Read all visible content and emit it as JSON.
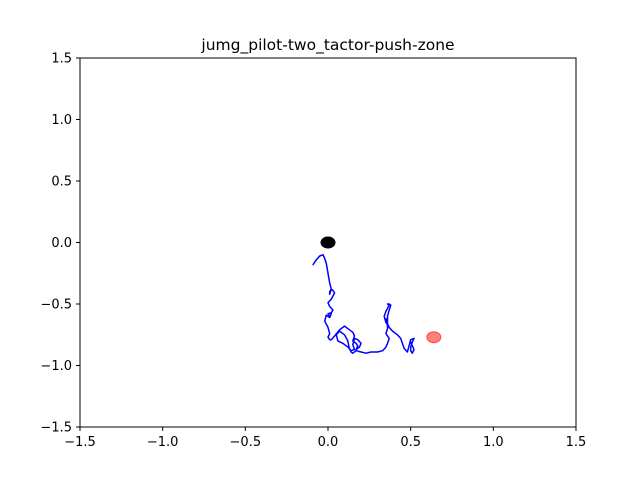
{
  "chart_data": {
    "type": "line",
    "title": "jumg_pilot-two_tactor-push-zone",
    "xlabel": "",
    "ylabel": "",
    "xlim": [
      -1.5,
      1.5
    ],
    "ylim": [
      -1.5,
      1.5
    ],
    "x_ticks": [
      -1.5,
      -1.0,
      -0.5,
      0.0,
      0.5,
      1.0,
      1.5
    ],
    "y_ticks": [
      -1.5,
      -1.0,
      -0.5,
      0.0,
      0.5,
      1.0,
      1.5
    ],
    "x_tick_labels": [
      "−1.5",
      "−1.0",
      "−0.5",
      "0.0",
      "0.5",
      "1.0",
      "1.5"
    ],
    "y_tick_labels": [
      "−1.5",
      "−1.0",
      "−0.5",
      "0.0",
      "0.5",
      "1.0",
      "1.5"
    ],
    "grid": false,
    "series": [
      {
        "color": "#0000ff",
        "x": [
          -0.09,
          -0.07,
          -0.05,
          -0.03,
          -0.02,
          -0.01,
          0.0,
          0.01,
          0.02,
          0.01,
          0.01,
          0.02,
          0.03,
          0.04,
          0.02,
          0.0,
          0.01,
          0.03,
          0.02,
          0.0,
          0.01,
          0.02,
          0.01,
          -0.01,
          -0.02,
          0.0,
          0.01,
          0.0,
          0.01,
          0.02,
          0.04,
          0.07,
          0.1,
          0.13,
          0.15,
          0.16,
          0.15,
          0.17,
          0.18,
          0.17,
          0.19,
          0.2,
          0.18,
          0.16,
          0.15,
          0.16,
          0.14,
          0.13,
          0.12,
          0.1,
          0.07,
          0.05,
          0.06,
          0.09,
          0.11,
          0.13,
          0.14,
          0.15,
          0.17,
          0.2,
          0.23,
          0.26,
          0.3,
          0.33,
          0.35,
          0.36,
          0.37,
          0.35,
          0.36,
          0.36,
          0.35,
          0.36,
          0.35,
          0.34,
          0.35,
          0.37,
          0.36,
          0.37,
          0.38,
          0.37,
          0.36,
          0.36,
          0.37,
          0.39,
          0.42,
          0.44,
          0.45,
          0.46,
          0.48,
          0.5,
          0.52,
          0.51,
          0.5,
          0.5,
          0.51,
          0.52,
          0.5
        ],
        "y": [
          -0.18,
          -0.14,
          -0.11,
          -0.1,
          -0.13,
          -0.17,
          -0.25,
          -0.33,
          -0.38,
          -0.4,
          -0.42,
          -0.38,
          -0.39,
          -0.41,
          -0.46,
          -0.49,
          -0.52,
          -0.55,
          -0.57,
          -0.58,
          -0.6,
          -0.58,
          -0.61,
          -0.59,
          -0.64,
          -0.69,
          -0.74,
          -0.77,
          -0.79,
          -0.79,
          -0.76,
          -0.71,
          -0.68,
          -0.71,
          -0.73,
          -0.76,
          -0.8,
          -0.82,
          -0.84,
          -0.87,
          -0.85,
          -0.82,
          -0.79,
          -0.78,
          -0.83,
          -0.87,
          -0.88,
          -0.87,
          -0.8,
          -0.75,
          -0.72,
          -0.75,
          -0.8,
          -0.82,
          -0.84,
          -0.86,
          -0.89,
          -0.9,
          -0.88,
          -0.89,
          -0.9,
          -0.89,
          -0.89,
          -0.88,
          -0.85,
          -0.82,
          -0.78,
          -0.74,
          -0.7,
          -0.64,
          -0.62,
          -0.67,
          -0.65,
          -0.6,
          -0.56,
          -0.51,
          -0.5,
          -0.5,
          -0.51,
          -0.55,
          -0.6,
          -0.66,
          -0.69,
          -0.72,
          -0.75,
          -0.78,
          -0.82,
          -0.86,
          -0.89,
          -0.79,
          -0.78,
          -0.81,
          -0.85,
          -0.88,
          -0.9,
          -0.87,
          -0.81
        ]
      }
    ],
    "markers": [
      {
        "color": "#000000",
        "x": 0.0,
        "y": 0.0
      },
      {
        "color": "#ff0000",
        "x": 0.64,
        "y": -0.77
      }
    ]
  }
}
